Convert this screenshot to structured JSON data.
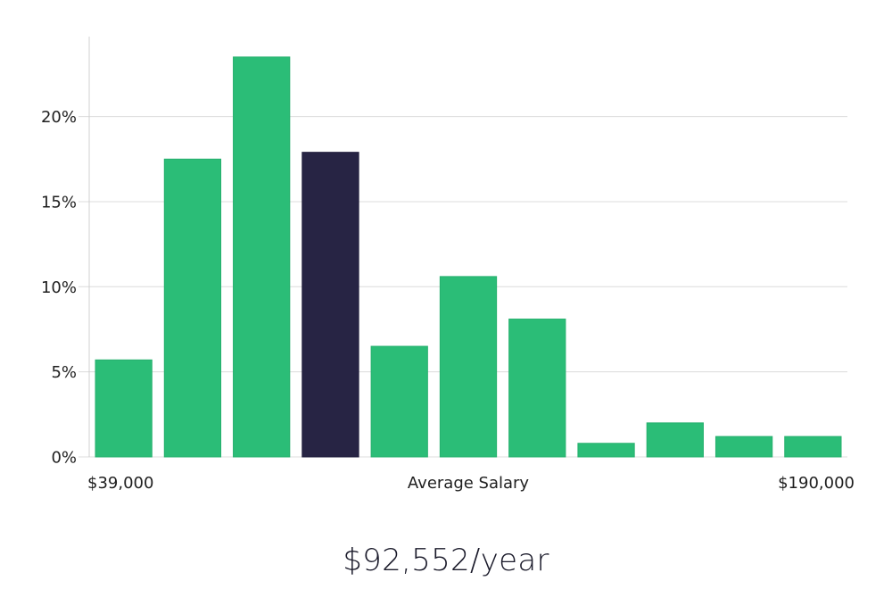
{
  "chart_data": {
    "type": "bar",
    "y_tick_labels": [
      "0%",
      "5%",
      "10%",
      "15%",
      "20%"
    ],
    "y_ticks": [
      0,
      5,
      10,
      15,
      20
    ],
    "ylim": [
      0,
      24.7
    ],
    "grid": true,
    "x_labels": {
      "min": "$39,000",
      "center": "Average Salary",
      "max": "$190,000"
    },
    "bins": 11,
    "values": [
      5.7,
      17.5,
      23.5,
      17.9,
      6.5,
      10.6,
      8.1,
      0.8,
      2.0,
      1.2,
      1.2
    ],
    "highlight_index": 3,
    "colors": {
      "bar": "#2bbd77",
      "highlight": "#272444",
      "grid": "#dcdcdc",
      "axis": "#d0d0d0",
      "text": "#1f1f1f"
    }
  },
  "summary": {
    "average_salary": "$92,552/year"
  }
}
